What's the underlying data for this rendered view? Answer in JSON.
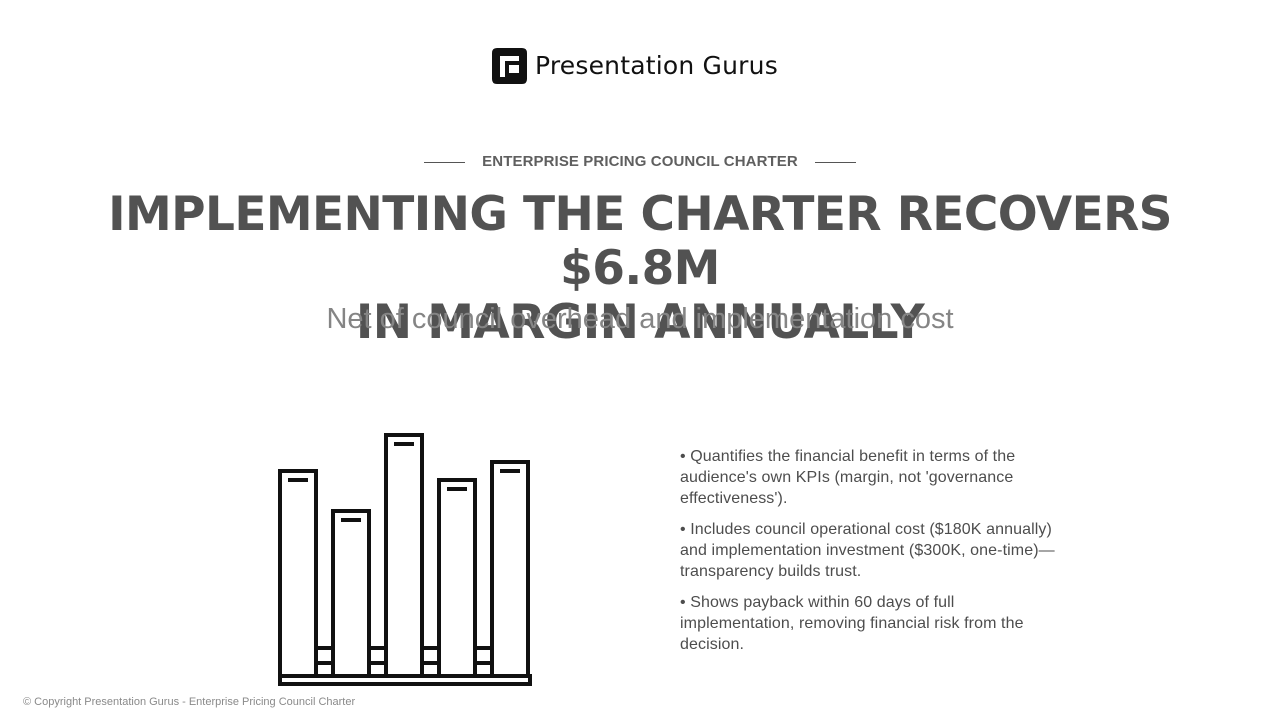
{
  "brand": {
    "logo_text": "Presentation Gurus",
    "logo_icon": "presentation-gurus-logo-icon"
  },
  "eyebrow": "ENTERPRISE PRICING COUNCIL CHARTER",
  "headline": {
    "line1": "IMPLEMENTING THE CHARTER RECOVERS $6.8M",
    "line2": "IN MARGIN ANNUALLY"
  },
  "subheadline": "Net of council overhead and implementation cost",
  "illustration": {
    "icon": "bar-chart-icon",
    "style": "outline"
  },
  "bullets": [
    "• Quantifies the financial benefit in terms of the audience's own KPIs (margin, not 'governance effectiveness').",
    "• Includes council operational cost ($180K annually) and implementation investment ($300K, one-time)—transparency builds trust.",
    "• Shows payback within 60 days of full implementation, removing financial risk from the decision."
  ],
  "footer": "© Copyright Presentation Gurus - Enterprise Pricing Council Charter",
  "colors": {
    "headline": "#525252",
    "subheadline": "#858585",
    "body": "#4d4d4d",
    "logo": "#111111"
  }
}
